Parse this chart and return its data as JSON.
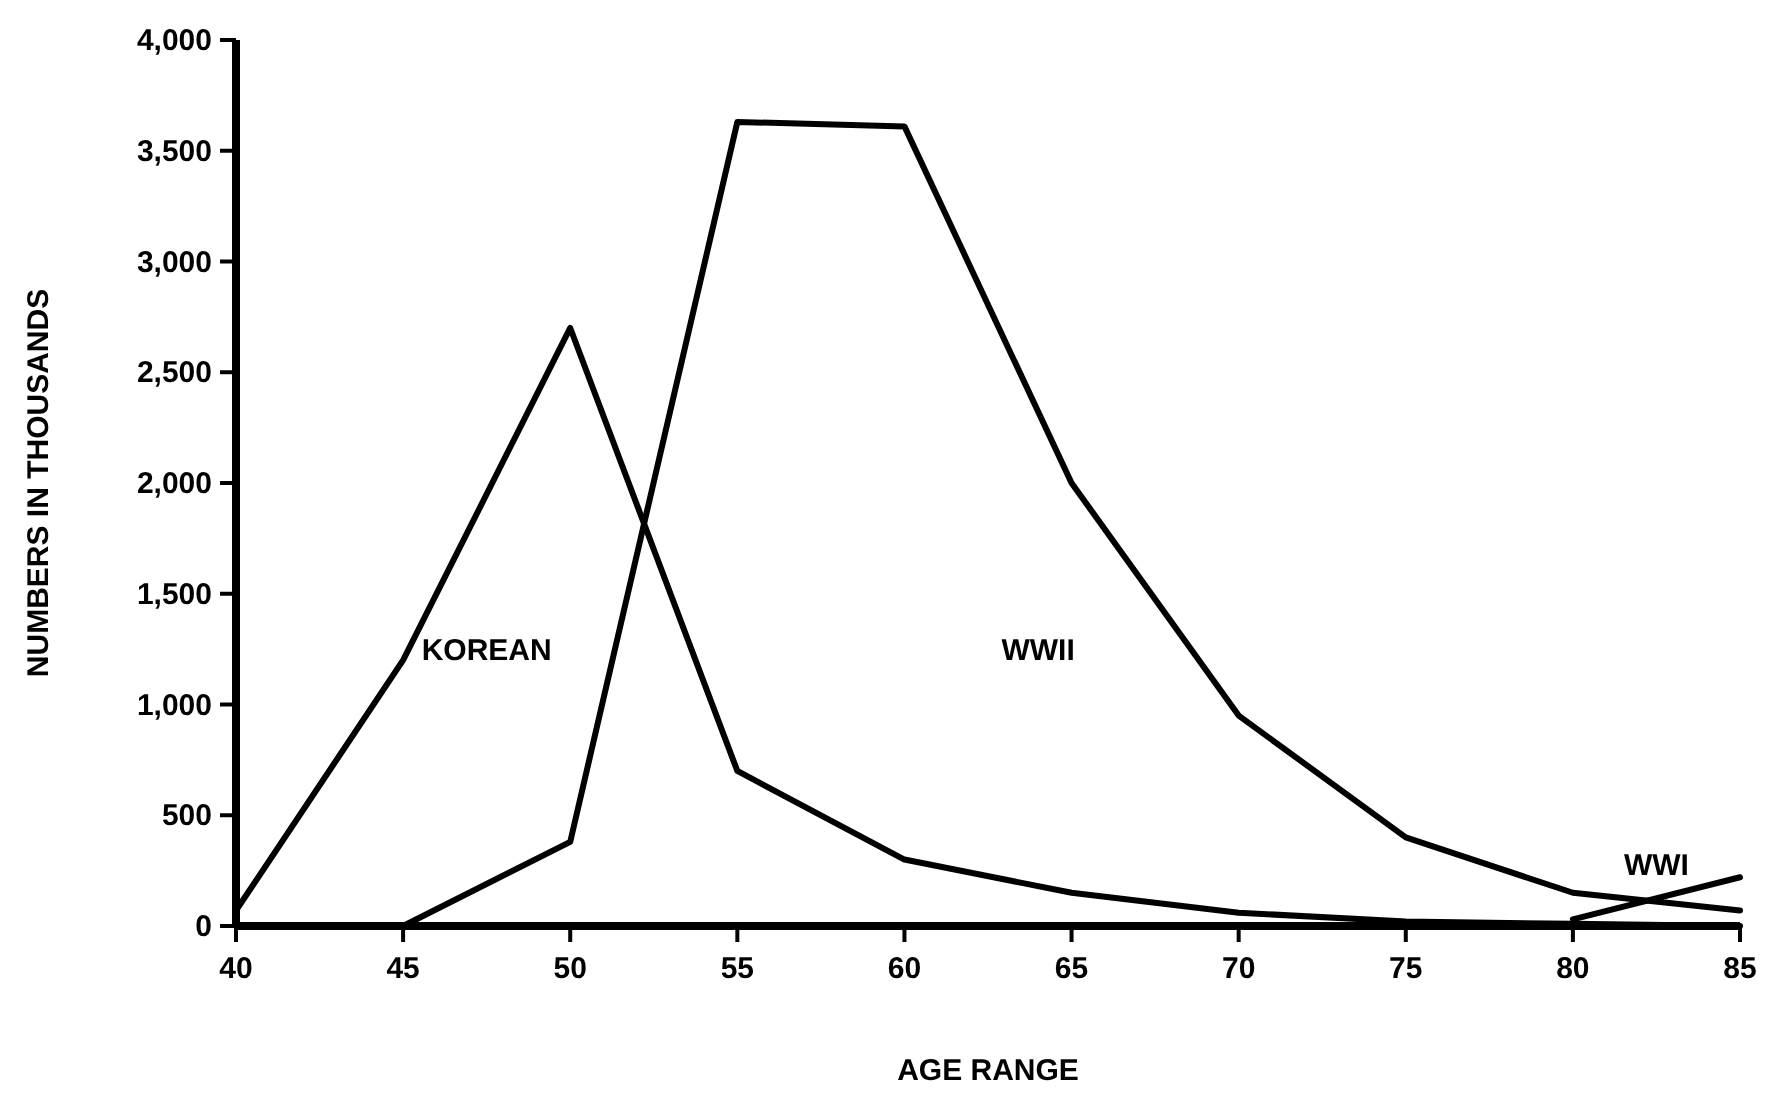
{
  "chart_data": {
    "type": "line",
    "xlabel": "AGE RANGE",
    "ylabel": "NUMBERS IN THOUSANDS",
    "x": [
      40,
      45,
      50,
      55,
      60,
      65,
      70,
      75,
      80,
      85
    ],
    "series": [
      {
        "name": "KOREAN",
        "color": "#000000",
        "values": [
          70,
          1200,
          2700,
          700,
          300,
          150,
          60,
          20,
          10,
          0
        ]
      },
      {
        "name": "WWII",
        "color": "#000000",
        "values": [
          null,
          0,
          380,
          3630,
          3610,
          2000,
          950,
          400,
          150,
          70
        ]
      },
      {
        "name": "WWI",
        "color": "#000000",
        "values": [
          null,
          null,
          null,
          null,
          null,
          null,
          null,
          null,
          30,
          220
        ]
      }
    ],
    "xlim": [
      40,
      85
    ],
    "xticks": [
      40,
      45,
      50,
      55,
      60,
      65,
      70,
      75,
      80,
      85
    ],
    "ylim": [
      0,
      4000
    ],
    "yticks": [
      {
        "value": 0,
        "label": "0"
      },
      {
        "value": 500,
        "label": "500"
      },
      {
        "value": 1000,
        "label": "1,000"
      },
      {
        "value": 1500,
        "label": "1,500"
      },
      {
        "value": 2000,
        "label": "2,000"
      },
      {
        "value": 2500,
        "label": "2,500"
      },
      {
        "value": 3000,
        "label": "3,000"
      },
      {
        "value": 3500,
        "label": "3,500"
      },
      {
        "value": 4000,
        "label": "4,000"
      }
    ],
    "grid": false,
    "marker": "none",
    "line_style": "solid"
  }
}
